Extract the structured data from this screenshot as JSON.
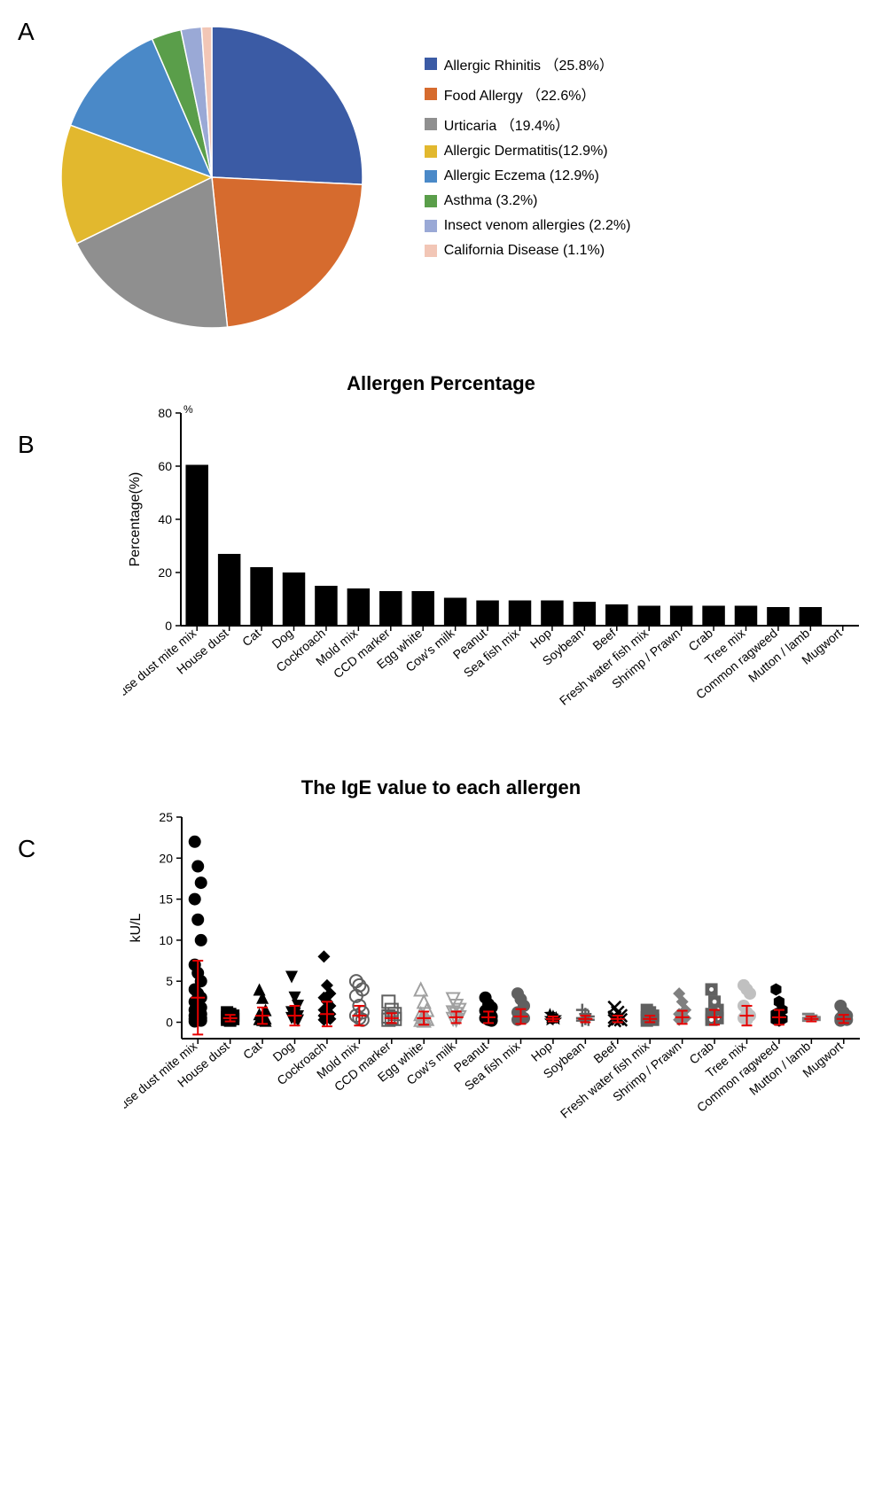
{
  "panelA": {
    "label": "A",
    "pie": {
      "type": "pie",
      "background_color": "#ffffff",
      "slices": [
        {
          "label": "Allergic Rhinitis （25.8%）",
          "value": 25.8,
          "color": "#3b5ba5"
        },
        {
          "label": "Food Allergy （22.6%）",
          "value": 22.6,
          "color": "#d66b2e"
        },
        {
          "label": "Urticaria （19.4%）",
          "value": 19.4,
          "color": "#8f8f8f"
        },
        {
          "label": "Allergic Dermatitis(12.9%)",
          "value": 12.9,
          "color": "#e2b82e"
        },
        {
          "label": "Allergic Eczema (12.9%)",
          "value": 12.9,
          "color": "#4a89c8"
        },
        {
          "label": "Asthma (3.2%)",
          "value": 3.2,
          "color": "#5a9e4a"
        },
        {
          "label": "Insect venom allergies (2.2%)",
          "value": 2.2,
          "color": "#9aa9d6"
        },
        {
          "label": "California Disease (1.1%)",
          "value": 1.1,
          "color": "#f2c6b6"
        }
      ],
      "legend_fontsize": 16,
      "legend_swatch_size": 14
    }
  },
  "panelB": {
    "label": "B",
    "title": "Allergen Percentage",
    "chart": {
      "type": "bar",
      "ylabel": "Percentage(%)",
      "label_fontsize": 16,
      "tick_fontsize": 14,
      "xtick_fontsize": 14,
      "ylim": [
        0,
        80
      ],
      "ytick_step": 20,
      "bar_color": "#000000",
      "background_color": "#ffffff",
      "axis_color": "#000000",
      "bar_width": 0.7,
      "categories": [
        "House dust mite mix",
        "House dust",
        "Cat",
        "Dog",
        "Cockroach",
        "Mold mix",
        "CCD marker",
        "Egg white",
        "Cow's milk",
        "Peanut",
        "Sea fish mix",
        "Hop",
        "Soybean",
        "Beef",
        "Fresh water fish mix",
        "Shrimp / Prawn",
        "Crab",
        "Tree mix",
        "Common ragweed",
        "Mutton / lamb",
        "Mugwort"
      ],
      "values": [
        60.5,
        27,
        22,
        20,
        15,
        14,
        13,
        13,
        10.5,
        9.5,
        9.5,
        9.5,
        9,
        8,
        7.5,
        7.5,
        7.5,
        7.5,
        7,
        7,
        0
      ]
    }
  },
  "panelC": {
    "label": "C",
    "title": "The IgE value to each allergen",
    "chart": {
      "type": "scatter",
      "ylabel": "kU/L",
      "label_fontsize": 16,
      "tick_fontsize": 14,
      "xtick_fontsize": 14,
      "ylim": [
        -2,
        25
      ],
      "yticks": [
        0,
        5,
        10,
        15,
        20,
        25
      ],
      "background_color": "#ffffff",
      "axis_color": "#000000",
      "error_bar_color": "#e60000",
      "error_bar_width": 2,
      "marker_size": 7,
      "categories": [
        "House dust mite mix",
        "House dust",
        "Cat",
        "Dog",
        "Cockroach",
        "Mold mix",
        "CCD marker",
        "Egg white",
        "Cow's milk",
        "Peanut",
        "Sea fish mix",
        "Hop",
        "Soybean",
        "Beef",
        "Fresh water fish mix",
        "Shrimp / Prawn",
        "Crab",
        "Tree mix",
        "Common ragweed",
        "Mutton / lamb",
        "Mugwort"
      ],
      "series": [
        {
          "cat": 0,
          "color": "#000000",
          "shape": "circle",
          "points": [
            22,
            19,
            17,
            15,
            12.5,
            10,
            7,
            6,
            5,
            4,
            3.5,
            3,
            2.5,
            2,
            1.8,
            1.5,
            1.2,
            1,
            0.8,
            0.6,
            0.5,
            0.4,
            0.3,
            0.2,
            0.1
          ],
          "mean": 3.0,
          "err": 4.5
        },
        {
          "cat": 1,
          "color": "#000000",
          "shape": "square",
          "points": [
            1.2,
            1.0,
            0.8,
            0.6,
            0.5,
            0.4,
            0.3,
            0.2
          ],
          "mean": 0.5,
          "err": 0.4
        },
        {
          "cat": 2,
          "color": "#000000",
          "shape": "triangle-up",
          "points": [
            4.0,
            3.0,
            1.5,
            1.0,
            0.8,
            0.5,
            0.4,
            0.3,
            0.2
          ],
          "mean": 0.8,
          "err": 1.0
        },
        {
          "cat": 3,
          "color": "#000000",
          "shape": "triangle-down",
          "points": [
            5.5,
            3.0,
            2.0,
            1.2,
            1.0,
            0.7,
            0.5,
            0.3,
            0.2
          ],
          "mean": 0.8,
          "err": 1.2
        },
        {
          "cat": 4,
          "color": "#000000",
          "shape": "diamond",
          "points": [
            8.0,
            4.5,
            3.5,
            3.0,
            2.5,
            2.0,
            1.5,
            1.2,
            1.0,
            0.8,
            0.6,
            0.4,
            0.3
          ],
          "mean": 1.0,
          "err": 1.5
        },
        {
          "cat": 5,
          "color": "#606060",
          "shape": "circle-open",
          "points": [
            5.0,
            4.5,
            4.0,
            3.2,
            2.0,
            1.2,
            0.8,
            0.5,
            0.3
          ],
          "mean": 0.8,
          "err": 1.2
        },
        {
          "cat": 6,
          "color": "#606060",
          "shape": "square-open",
          "points": [
            2.5,
            1.5,
            1.0,
            0.7,
            0.5,
            0.4,
            0.3
          ],
          "mean": 0.5,
          "err": 0.6
        },
        {
          "cat": 7,
          "color": "#a0a0a0",
          "shape": "triangle-up-open",
          "points": [
            4.0,
            2.5,
            1.5,
            1.0,
            0.6,
            0.4,
            0.3,
            0.2
          ],
          "mean": 0.5,
          "err": 0.8
        },
        {
          "cat": 8,
          "color": "#a0a0a0",
          "shape": "triangle-down-open",
          "points": [
            2.8,
            2.0,
            1.5,
            1.2,
            1.0,
            0.6,
            0.4,
            0.3
          ],
          "mean": 0.6,
          "err": 0.7
        },
        {
          "cat": 9,
          "color": "#000000",
          "shape": "circle",
          "points": [
            3.0,
            2.2,
            1.8,
            1.4,
            1.0,
            0.7,
            0.5,
            0.3,
            0.2
          ],
          "mean": 0.6,
          "err": 0.7
        },
        {
          "cat": 10,
          "color": "#606060",
          "shape": "circle",
          "points": [
            3.5,
            2.8,
            2.0,
            1.2,
            0.8,
            0.5,
            0.3
          ],
          "mean": 0.7,
          "err": 0.9
        },
        {
          "cat": 11,
          "color": "#000000",
          "shape": "star",
          "points": [
            1.0,
            0.8,
            0.6,
            0.5,
            0.4,
            0.3,
            0.2
          ],
          "mean": 0.4,
          "err": 0.3
        },
        {
          "cat": 12,
          "color": "#606060",
          "shape": "plus",
          "points": [
            1.5,
            1.0,
            0.7,
            0.5,
            0.4,
            0.3,
            0.2
          ],
          "mean": 0.4,
          "err": 0.4
        },
        {
          "cat": 13,
          "color": "#000000",
          "shape": "x",
          "points": [
            1.8,
            1.2,
            0.8,
            0.6,
            0.4,
            0.3,
            0.2
          ],
          "mean": 0.4,
          "err": 0.4
        },
        {
          "cat": 14,
          "color": "#606060",
          "shape": "square",
          "points": [
            1.5,
            1.2,
            0.8,
            0.6,
            0.5,
            0.3,
            0.2
          ],
          "mean": 0.4,
          "err": 0.4
        },
        {
          "cat": 15,
          "color": "#808080",
          "shape": "diamond",
          "points": [
            3.5,
            2.5,
            1.5,
            1.0,
            0.7,
            0.5,
            0.3
          ],
          "mean": 0.6,
          "err": 0.8
        },
        {
          "cat": 16,
          "color": "#606060",
          "shape": "square-dot",
          "points": [
            4.0,
            2.5,
            1.5,
            1.0,
            0.7,
            0.5,
            0.3
          ],
          "mean": 0.6,
          "err": 0.9
        },
        {
          "cat": 17,
          "color": "#c0c0c0",
          "shape": "circle",
          "points": [
            4.5,
            4.0,
            3.5,
            2.0,
            1.2,
            0.8,
            0.5,
            0.3
          ],
          "mean": 0.8,
          "err": 1.2
        },
        {
          "cat": 18,
          "color": "#000000",
          "shape": "hexagon",
          "points": [
            4.0,
            2.5,
            1.5,
            1.0,
            0.6,
            0.4,
            0.3,
            0.2
          ],
          "mean": 0.6,
          "err": 0.9
        },
        {
          "cat": 19,
          "color": "#808080",
          "shape": "dash",
          "points": [
            1.0,
            0.8,
            0.6,
            0.5,
            0.4,
            0.3,
            0.2
          ],
          "mean": 0.4,
          "err": 0.3
        },
        {
          "cat": 20,
          "color": "#606060",
          "shape": "circle",
          "points": [
            2.0,
            1.2,
            0.8,
            0.5,
            0.4,
            0.3,
            0.2
          ],
          "mean": 0.4,
          "err": 0.5
        }
      ]
    }
  }
}
